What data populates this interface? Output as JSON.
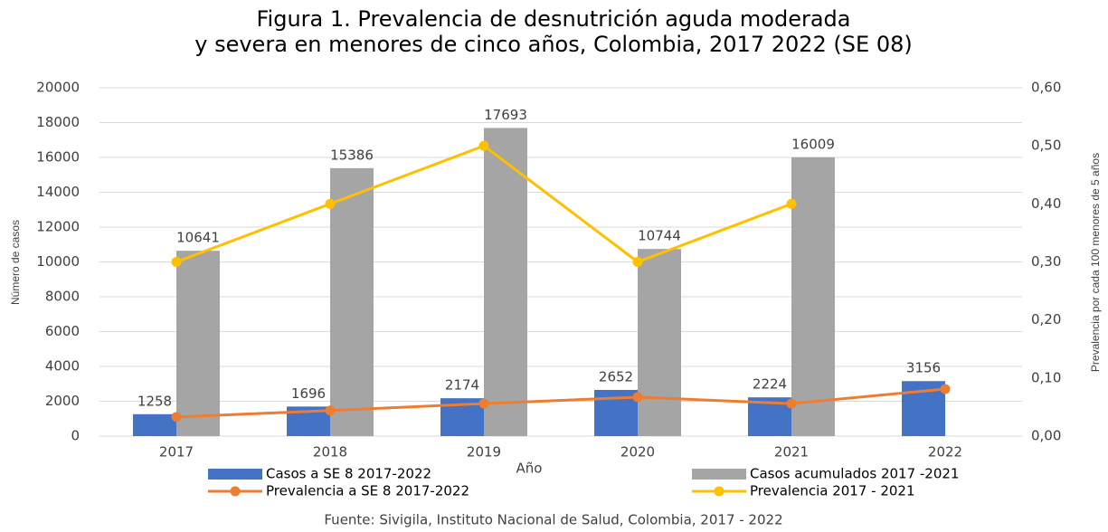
{
  "chart_data": {
    "type": "bar",
    "title": [
      "Figura 1. Prevalencia de desnutrición aguda moderada",
      "y severa en menores de cinco años, Colombia, 2017 2022 (SE 08)"
    ],
    "x_label": "Año",
    "y_label": "Número de casos",
    "y2_label": "Prevalencia por cada 100 menores de 5 años",
    "source": "Fuente: Sivigila, Instituto Nacional de Salud, Colombia, 2017 - 2022",
    "categories": [
      "2017",
      "2018",
      "2019",
      "2020",
      "2021",
      "2022"
    ],
    "series": [
      {
        "name": "Casos a SE 8 2017-2022",
        "kind": "bar",
        "color": "#4472c4",
        "values": [
          1258,
          1696,
          2174,
          2652,
          2224,
          3156
        ]
      },
      {
        "name": "Casos acumulados 2017 -2021",
        "kind": "bar",
        "color": "#a5a5a5",
        "values": [
          10641,
          15386,
          17693,
          10744,
          16009,
          null
        ]
      },
      {
        "name": "Prevalencia a SE 8 2017-2022",
        "kind": "line",
        "axis": "y2",
        "color": "#ed7d31",
        "values": [
          0.033,
          0.044,
          0.056,
          0.067,
          0.056,
          0.081
        ]
      },
      {
        "name": "Prevalencia 2017 - 2021",
        "kind": "line",
        "axis": "y2",
        "color": "#ffc000",
        "values": [
          0.3,
          0.4,
          0.5,
          0.3,
          0.4,
          null
        ]
      }
    ],
    "ylim": [
      0,
      20000
    ],
    "yticks": [
      0,
      2000,
      4000,
      6000,
      8000,
      10000,
      12000,
      14000,
      16000,
      18000,
      20000
    ],
    "y2lim": [
      0,
      0.6
    ],
    "y2ticks": [
      {
        "value": 0,
        "label": "0,00"
      },
      {
        "value": 0.1,
        "label": "0,10"
      },
      {
        "value": 0.2,
        "label": "0,20"
      },
      {
        "value": 0.3,
        "label": "0,30"
      },
      {
        "value": 0.4,
        "label": "0,40"
      },
      {
        "value": 0.5,
        "label": "0,50"
      },
      {
        "value": 0.6,
        "label": "0,60"
      }
    ],
    "grid": true
  }
}
